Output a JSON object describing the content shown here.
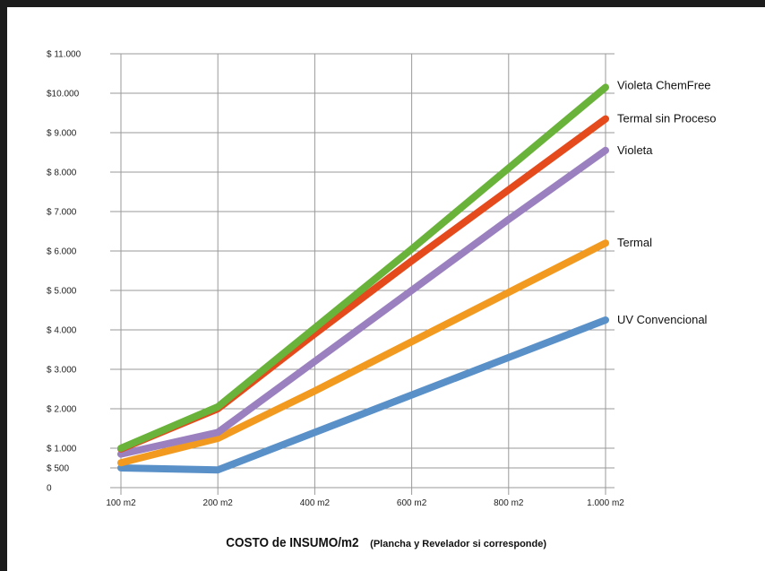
{
  "chart_data": {
    "type": "line",
    "categories": [
      "100 m2",
      "200 m2",
      "400 m2",
      "600 m2",
      "800 m2",
      "1.000 m2"
    ],
    "series": [
      {
        "name": "Violeta ChemFree",
        "color": "#6ab33a",
        "values": [
          1000,
          2050,
          4050,
          6050,
          8100,
          10150
        ]
      },
      {
        "name": "Termal sin Proceso",
        "color": "#e54a1c",
        "values": [
          980,
          2000,
          3900,
          5750,
          7550,
          9350
        ]
      },
      {
        "name": "Violeta",
        "color": "#9a80bf",
        "values": [
          850,
          1400,
          3200,
          5000,
          6800,
          8550
        ]
      },
      {
        "name": "Termal",
        "color": "#f29a1f",
        "values": [
          630,
          1250,
          2450,
          3700,
          4950,
          6200
        ]
      },
      {
        "name": "UV Convencional",
        "color": "#5a90c8",
        "values": [
          500,
          450,
          1400,
          2350,
          3300,
          4250
        ]
      }
    ],
    "yticks": [
      0,
      500,
      1000,
      2000,
      3000,
      4000,
      5000,
      6000,
      7000,
      8000,
      9000,
      10000,
      11000
    ],
    "ytick_labels": [
      "0",
      "$    500",
      "$ 1.000",
      "$ 2.000",
      "$ 3.000",
      "$ 4.000",
      "$ 5.000",
      "$ 6.000",
      "$ 7.000",
      "$ 8.000",
      "$ 9.000",
      "$10.000",
      "$ 11.000"
    ],
    "ylim": [
      0,
      11000
    ],
    "grid": true,
    "legend": "right, at line ends",
    "title": "COSTO de INSUMO/m2",
    "subtitle": "(Plancha y Revelador si corresponde)",
    "xlabel": "",
    "ylabel": ""
  }
}
